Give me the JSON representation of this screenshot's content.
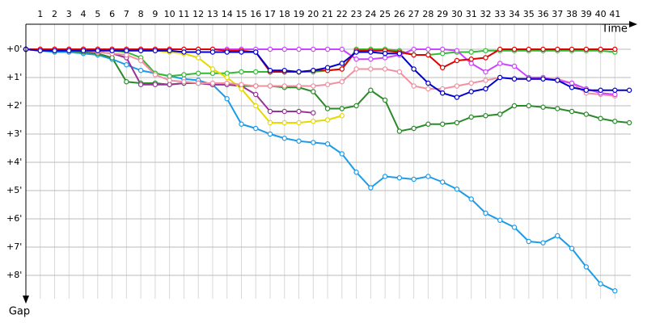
{
  "chart_data": {
    "type": "line",
    "x_label": "Time",
    "y_label": "Gap",
    "x": [
      0,
      1,
      2,
      3,
      4,
      5,
      6,
      7,
      8,
      9,
      10,
      11,
      12,
      13,
      14,
      15,
      16,
      17,
      18,
      19,
      20,
      21,
      22,
      23,
      24,
      25,
      26,
      27,
      28,
      29,
      30,
      31,
      32,
      33,
      34,
      35,
      36,
      37,
      38,
      39,
      40,
      41,
      42
    ],
    "xlim": [
      0,
      42.5
    ],
    "xticks": [
      1,
      2,
      3,
      4,
      5,
      6,
      7,
      8,
      9,
      10,
      11,
      12,
      13,
      14,
      15,
      16,
      17,
      18,
      19,
      20,
      21,
      22,
      23,
      24,
      25,
      26,
      27,
      28,
      29,
      30,
      31,
      32,
      33,
      34,
      35,
      36,
      37,
      38,
      39,
      40,
      41
    ],
    "ylim": [
      -0.9,
      8.8
    ],
    "yticks": [
      {
        "value": 0,
        "label": "+0'"
      },
      {
        "value": 1,
        "label": "+1'"
      },
      {
        "value": 2,
        "label": "+2'"
      },
      {
        "value": 3,
        "label": "+3'"
      },
      {
        "value": 4,
        "label": "+4'"
      },
      {
        "value": 5,
        "label": "+5'"
      },
      {
        "value": 6,
        "label": "+6'"
      },
      {
        "value": 7,
        "label": "+7'"
      },
      {
        "value": 8,
        "label": "+8'"
      }
    ],
    "y_inverted": true,
    "grid": true,
    "series": [
      {
        "color": "#1e9be8",
        "values": [
          0,
          0.05,
          0.1,
          0.1,
          0.15,
          0.2,
          0.35,
          0.55,
          0.75,
          0.85,
          0.95,
          1.05,
          1.1,
          1.25,
          1.75,
          2.65,
          2.8,
          3.0,
          3.15,
          3.25,
          3.3,
          3.35,
          3.7,
          4.35,
          4.9,
          4.5,
          4.55,
          4.6,
          4.5,
          4.7,
          4.95,
          5.3,
          5.8,
          6.05,
          6.3,
          6.8,
          6.85,
          6.6,
          7.05,
          7.7,
          8.3,
          8.55,
          null
        ]
      },
      {
        "color": "#2a8a2a",
        "values": [
          0,
          0.05,
          0.05,
          0.05,
          0.1,
          0.15,
          0.3,
          1.15,
          1.2,
          1.2,
          1.25,
          1.2,
          1.2,
          1.25,
          1.25,
          1.3,
          1.3,
          1.3,
          1.35,
          1.35,
          1.5,
          2.1,
          2.1,
          2.0,
          1.45,
          1.8,
          2.9,
          2.8,
          2.65,
          2.65,
          2.6,
          2.4,
          2.35,
          2.3,
          2.0,
          2.0,
          2.05,
          2.1,
          2.2,
          2.3,
          2.45,
          2.55,
          2.6
        ]
      },
      {
        "color": "#33bb33",
        "values": [
          0,
          0,
          0,
          0,
          0,
          0,
          0.05,
          0.1,
          0.3,
          0.85,
          0.95,
          0.9,
          0.85,
          0.85,
          0.85,
          0.8,
          0.8,
          0.8,
          0.8,
          0.8,
          0.8,
          0.75,
          0.7,
          0.0,
          0.0,
          0.0,
          0.05,
          0.2,
          0.2,
          0.15,
          0.1,
          0.1,
          0.05,
          0.05,
          0.05,
          0.05,
          0.05,
          0.05,
          0.05,
          0.05,
          0.05,
          0.1,
          null
        ]
      },
      {
        "color": "#993399",
        "values": [
          0,
          0.05,
          0.05,
          0.05,
          0.05,
          0.1,
          0.15,
          0.3,
          1.25,
          1.25,
          1.25,
          1.2,
          1.2,
          1.25,
          1.25,
          1.3,
          1.6,
          2.2,
          2.2,
          2.2,
          2.25,
          null,
          null,
          null,
          null,
          null,
          null,
          null,
          null,
          null,
          null,
          null,
          null,
          null,
          null,
          null,
          null,
          null,
          null,
          null,
          null,
          null,
          null
        ]
      },
      {
        "color": "#e6d800",
        "values": [
          0,
          0,
          0,
          0,
          0,
          0,
          0,
          0,
          0.05,
          0.05,
          0.1,
          0.15,
          0.3,
          0.7,
          1.0,
          1.4,
          2.0,
          2.6,
          2.6,
          2.6,
          2.55,
          2.5,
          2.35,
          null,
          null,
          null,
          null,
          null,
          null,
          null,
          null,
          null,
          null,
          null,
          null,
          null,
          null,
          null,
          null,
          null,
          null,
          null,
          null
        ]
      },
      {
        "color": "#f090a0",
        "values": [
          0,
          0.05,
          0.05,
          0.05,
          0.05,
          0.1,
          0.15,
          0.2,
          0.4,
          0.9,
          1.1,
          1.15,
          1.2,
          1.2,
          1.2,
          1.25,
          1.3,
          1.3,
          1.3,
          1.3,
          1.3,
          1.25,
          1.15,
          0.7,
          0.7,
          0.7,
          0.8,
          1.3,
          1.4,
          1.4,
          1.3,
          1.2,
          1.1,
          1.0,
          1.05,
          1.05,
          1.05,
          1.05,
          1.2,
          1.55,
          1.6,
          1.65,
          null
        ]
      },
      {
        "color": "#cc44ff",
        "values": [
          0,
          0,
          0,
          0,
          0,
          0,
          0,
          0,
          0,
          0,
          0,
          0,
          0,
          0,
          0,
          0,
          0,
          0,
          0,
          0,
          0,
          0,
          0,
          0.35,
          0.35,
          0.3,
          0.2,
          0.0,
          0.0,
          0.0,
          0.05,
          0.5,
          0.8,
          0.5,
          0.6,
          1.0,
          1.0,
          1.1,
          1.2,
          1.4,
          1.55,
          1.6,
          null
        ]
      },
      {
        "color": "#e00000",
        "values": [
          0,
          0,
          0,
          0,
          0,
          0,
          0,
          0,
          0,
          0,
          0,
          0,
          0,
          0,
          0.05,
          0.05,
          0.1,
          0.8,
          0.8,
          0.8,
          0.75,
          0.75,
          0.7,
          0.05,
          0.05,
          0.05,
          0.1,
          0.2,
          0.2,
          0.65,
          0.4,
          0.35,
          0.3,
          0.0,
          0.0,
          0.0,
          0.0,
          0.0,
          0.0,
          0.0,
          0.0,
          0.0,
          null
        ]
      },
      {
        "color": "#0000cc",
        "values": [
          0,
          0.05,
          0.05,
          0.05,
          0.05,
          0.05,
          0.05,
          0.05,
          0.05,
          0.05,
          0.05,
          0.1,
          0.1,
          0.1,
          0.1,
          0.1,
          0.1,
          0.75,
          0.75,
          0.8,
          0.75,
          0.65,
          0.5,
          0.1,
          0.1,
          0.15,
          0.15,
          0.7,
          1.2,
          1.55,
          1.7,
          1.5,
          1.4,
          1.0,
          1.05,
          1.05,
          1.05,
          1.1,
          1.35,
          1.45,
          1.45,
          1.45,
          1.45
        ]
      }
    ]
  }
}
